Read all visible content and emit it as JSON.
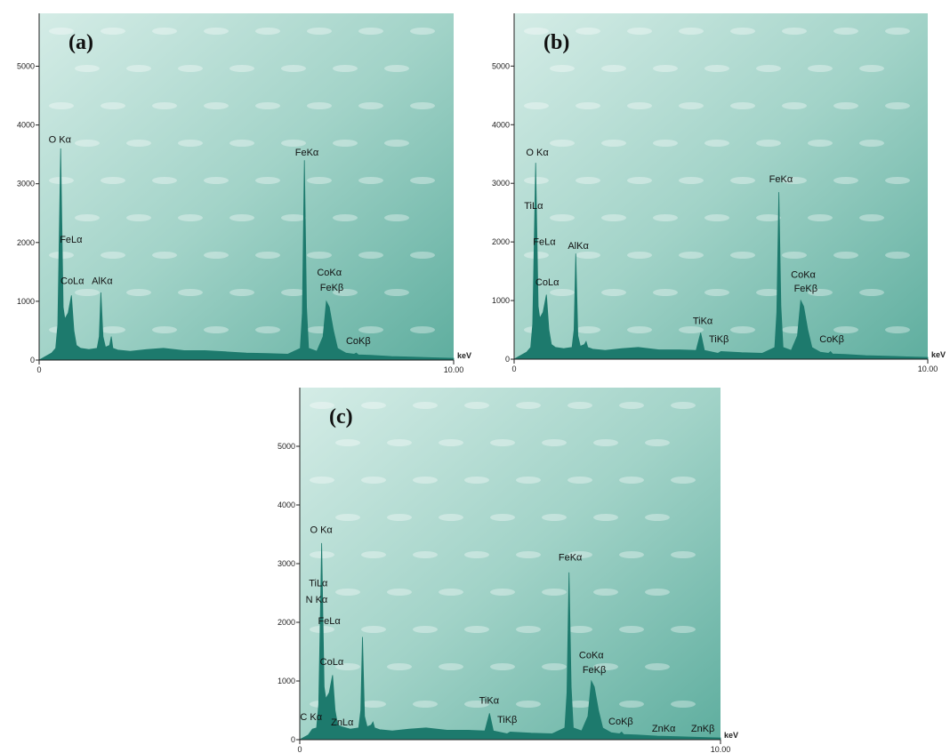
{
  "chart_data": [
    {
      "type": "area",
      "title": "(a)",
      "xlabel": "keV",
      "color": "#1d7a6d",
      "xlim": [
        0,
        10
      ],
      "xticks": [
        0,
        {
          "value": 10,
          "label": "10.00"
        }
      ],
      "ylim": [
        0,
        5900
      ],
      "yticks": [
        0,
        1000,
        2000,
        3000,
        4000,
        5000
      ],
      "x": [
        0,
        0.1,
        0.2,
        0.3,
        0.4,
        0.45,
        0.52,
        0.58,
        0.62,
        0.7,
        0.78,
        0.84,
        0.9,
        1.0,
        1.2,
        1.4,
        1.45,
        1.49,
        1.54,
        1.6,
        1.7,
        1.74,
        1.78,
        1.9,
        2.2,
        2.6,
        3.0,
        3.5,
        4.0,
        4.5,
        5.0,
        5.5,
        6.0,
        6.3,
        6.35,
        6.4,
        6.45,
        6.5,
        6.7,
        6.85,
        6.93,
        7.0,
        7.1,
        7.2,
        7.4,
        7.6,
        7.65,
        7.7,
        8.0,
        8.5,
        9.0,
        9.5,
        10
      ],
      "values": [
        0,
        40,
        80,
        120,
        200,
        600,
        3600,
        900,
        700,
        800,
        1100,
        500,
        250,
        200,
        180,
        200,
        400,
        1150,
        400,
        220,
        250,
        400,
        200,
        170,
        150,
        180,
        200,
        160,
        160,
        140,
        120,
        110,
        100,
        200,
        800,
        3400,
        900,
        200,
        150,
        400,
        1000,
        900,
        500,
        200,
        120,
        100,
        120,
        90,
        80,
        60,
        50,
        40,
        30
      ],
      "annotations": [
        {
          "text": "O Kα",
          "x": 0.5,
          "y": 3700
        },
        {
          "text": "FeLα",
          "x": 0.77,
          "y": 2000
        },
        {
          "text": "CoLα",
          "x": 0.8,
          "y": 1290
        },
        {
          "text": "AlKα",
          "x": 1.52,
          "y": 1290
        },
        {
          "text": "FeKα",
          "x": 6.46,
          "y": 3480
        },
        {
          "text": "CoKα",
          "x": 7.0,
          "y": 1440
        },
        {
          "text": "FeKβ",
          "x": 7.06,
          "y": 1180
        },
        {
          "text": "CoKβ",
          "x": 7.7,
          "y": 270
        }
      ]
    },
    {
      "type": "area",
      "title": "(b)",
      "xlabel": "keV",
      "color": "#1d7a6d",
      "xlim": [
        0,
        10
      ],
      "xticks": [
        0,
        {
          "value": 10,
          "label": "10.00"
        }
      ],
      "ylim": [
        0,
        5900
      ],
      "yticks": [
        0,
        1000,
        2000,
        3000,
        4000,
        5000
      ],
      "x": [
        0,
        0.1,
        0.2,
        0.3,
        0.4,
        0.45,
        0.52,
        0.58,
        0.62,
        0.7,
        0.78,
        0.84,
        0.9,
        1.0,
        1.2,
        1.4,
        1.45,
        1.49,
        1.54,
        1.6,
        1.7,
        1.74,
        1.78,
        1.9,
        2.2,
        2.6,
        3.0,
        3.5,
        4.0,
        4.4,
        4.51,
        4.6,
        4.93,
        5.0,
        5.5,
        6.0,
        6.3,
        6.35,
        6.4,
        6.45,
        6.5,
        6.7,
        6.85,
        6.93,
        7.0,
        7.1,
        7.2,
        7.4,
        7.6,
        7.65,
        7.7,
        8.0,
        8.5,
        9.0,
        9.5,
        10
      ],
      "values": [
        0,
        40,
        80,
        120,
        200,
        600,
        3350,
        900,
        700,
        800,
        1100,
        500,
        250,
        200,
        180,
        200,
        500,
        1800,
        400,
        220,
        250,
        300,
        200,
        170,
        150,
        180,
        200,
        160,
        160,
        150,
        450,
        150,
        100,
        130,
        110,
        100,
        200,
        800,
        2850,
        900,
        200,
        150,
        400,
        1000,
        900,
        500,
        200,
        120,
        100,
        130,
        90,
        80,
        60,
        50,
        40,
        30
      ],
      "annotations": [
        {
          "text": "O Kα",
          "x": 0.56,
          "y": 3470
        },
        {
          "text": "TiLα",
          "x": 0.47,
          "y": 2560
        },
        {
          "text": "FeLα",
          "x": 0.73,
          "y": 1950
        },
        {
          "text": "AlKα",
          "x": 1.55,
          "y": 1880
        },
        {
          "text": "CoLα",
          "x": 0.8,
          "y": 1260
        },
        {
          "text": "TiKα",
          "x": 4.56,
          "y": 600
        },
        {
          "text": "TiKβ",
          "x": 4.95,
          "y": 290
        },
        {
          "text": "FeKα",
          "x": 6.45,
          "y": 3020
        },
        {
          "text": "CoKα",
          "x": 6.99,
          "y": 1390
        },
        {
          "text": "FeKβ",
          "x": 7.05,
          "y": 1150
        },
        {
          "text": "CoKβ",
          "x": 7.68,
          "y": 290
        }
      ]
    },
    {
      "type": "area",
      "title": "(c)",
      "xlabel": "keV",
      "color": "#1d7a6d",
      "xlim": [
        0,
        10
      ],
      "xticks": [
        0,
        {
          "value": 10,
          "label": "10.00"
        }
      ],
      "ylim": [
        0,
        6000
      ],
      "yticks": [
        0,
        1000,
        2000,
        3000,
        4000,
        5000
      ],
      "x": [
        0,
        0.1,
        0.2,
        0.3,
        0.4,
        0.45,
        0.52,
        0.58,
        0.62,
        0.7,
        0.78,
        0.84,
        0.9,
        1.0,
        1.2,
        1.4,
        1.45,
        1.49,
        1.54,
        1.6,
        1.7,
        1.74,
        1.78,
        1.9,
        2.2,
        2.6,
        3.0,
        3.5,
        4.0,
        4.4,
        4.51,
        4.6,
        4.93,
        5.0,
        5.5,
        6.0,
        6.3,
        6.35,
        6.4,
        6.45,
        6.5,
        6.7,
        6.85,
        6.93,
        7.0,
        7.1,
        7.2,
        7.4,
        7.6,
        7.65,
        7.7,
        8.0,
        8.5,
        9.0,
        9.5,
        10
      ],
      "values": [
        0,
        40,
        80,
        180,
        200,
        600,
        3350,
        900,
        700,
        800,
        1100,
        500,
        250,
        220,
        180,
        200,
        500,
        1750,
        400,
        220,
        250,
        300,
        200,
        170,
        150,
        180,
        200,
        160,
        160,
        150,
        450,
        150,
        100,
        130,
        110,
        100,
        200,
        800,
        2850,
        900,
        200,
        150,
        400,
        1000,
        900,
        500,
        200,
        120,
        100,
        130,
        90,
        80,
        60,
        50,
        40,
        30
      ],
      "annotations": [
        {
          "text": "O Kα",
          "x": 0.51,
          "y": 3520
        },
        {
          "text": "TiLα",
          "x": 0.44,
          "y": 2610
        },
        {
          "text": "N Kα",
          "x": 0.4,
          "y": 2330
        },
        {
          "text": "FeLα",
          "x": 0.7,
          "y": 1970
        },
        {
          "text": "CoLα",
          "x": 0.76,
          "y": 1270
        },
        {
          "text": "C Kα",
          "x": 0.27,
          "y": 330
        },
        {
          "text": "ZnLα",
          "x": 1.01,
          "y": 240
        },
        {
          "text": "TiKα",
          "x": 4.5,
          "y": 610
        },
        {
          "text": "TiKβ",
          "x": 4.93,
          "y": 290
        },
        {
          "text": "FeKα",
          "x": 6.43,
          "y": 3050
        },
        {
          "text": "CoKα",
          "x": 6.93,
          "y": 1390
        },
        {
          "text": "FeKβ",
          "x": 7.0,
          "y": 1140
        },
        {
          "text": "CoKβ",
          "x": 7.63,
          "y": 260
        },
        {
          "text": "ZnKα",
          "x": 8.65,
          "y": 140
        },
        {
          "text": "ZnKβ",
          "x": 9.58,
          "y": 140
        }
      ]
    }
  ]
}
